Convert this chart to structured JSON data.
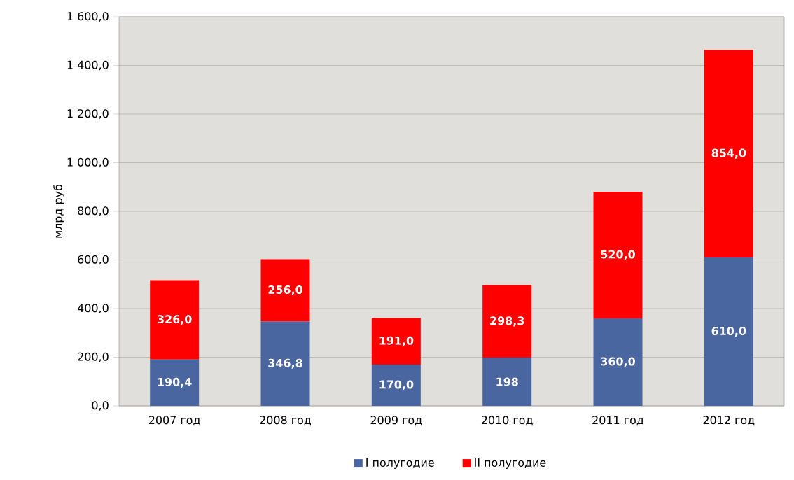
{
  "chart_data": {
    "type": "bar",
    "stacked": true,
    "ylabel": "млрд руб",
    "categories": [
      "2007 год",
      "2008 год",
      "2009 год",
      "2010 год",
      "2011 год",
      "2012 год"
    ],
    "series": [
      {
        "name": "I полугодие",
        "color": "#4a66a0",
        "values": [
          190.4,
          346.8,
          170.0,
          198,
          360.0,
          610.0
        ],
        "value_labels": [
          "190,4",
          "346,8",
          "170,0",
          "198",
          "360,0",
          "610,0"
        ]
      },
      {
        "name": "II полугодие",
        "color": "#ff0000",
        "values": [
          326.0,
          256.0,
          191.0,
          298.3,
          520.0,
          854.0
        ],
        "value_labels": [
          "326,0",
          "256,0",
          "191,0",
          "298,3",
          "520,0",
          "854,0"
        ]
      }
    ],
    "ylim": [
      0,
      1600
    ],
    "yticks": [
      {
        "value": 0,
        "label": "0,0"
      },
      {
        "value": 200,
        "label": "200,0"
      },
      {
        "value": 400,
        "label": "400,0"
      },
      {
        "value": 600,
        "label": "600,0"
      },
      {
        "value": 800,
        "label": "800,0"
      },
      {
        "value": 1000,
        "label": "1 000,0"
      },
      {
        "value": 1200,
        "label": "1 200,0"
      },
      {
        "value": 1400,
        "label": "1 400,0"
      },
      {
        "value": 1600,
        "label": "1 600,0"
      }
    ],
    "grid": "y",
    "legend": "bottom"
  }
}
